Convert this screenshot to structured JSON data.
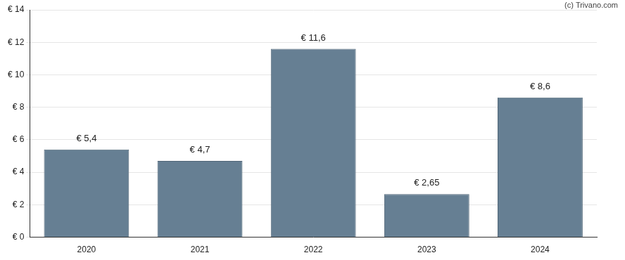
{
  "chart_data": {
    "type": "bar",
    "annotation": "(c) Trivano.com",
    "categories": [
      "2020",
      "2021",
      "2022",
      "2023",
      "2024"
    ],
    "values": [
      5.4,
      4.7,
      11.6,
      2.65,
      8.6
    ],
    "value_labels": [
      "€ 5,4",
      "€ 4,7",
      "€ 11,6",
      "€ 2,65",
      "€ 8,6"
    ],
    "data_labels": true,
    "color": "#667f93",
    "ylim": [
      0,
      14
    ],
    "yticks": [
      {
        "value": 0,
        "label": "€ 0"
      },
      {
        "value": 2,
        "label": "€ 2"
      },
      {
        "value": 4,
        "label": "€ 4"
      },
      {
        "value": 6,
        "label": "€ 6"
      },
      {
        "value": 8,
        "label": "€ 8"
      },
      {
        "value": 10,
        "label": "€ 10"
      },
      {
        "value": 12,
        "label": "€ 12"
      },
      {
        "value": 14,
        "label": "€ 14"
      }
    ],
    "grid": true
  }
}
